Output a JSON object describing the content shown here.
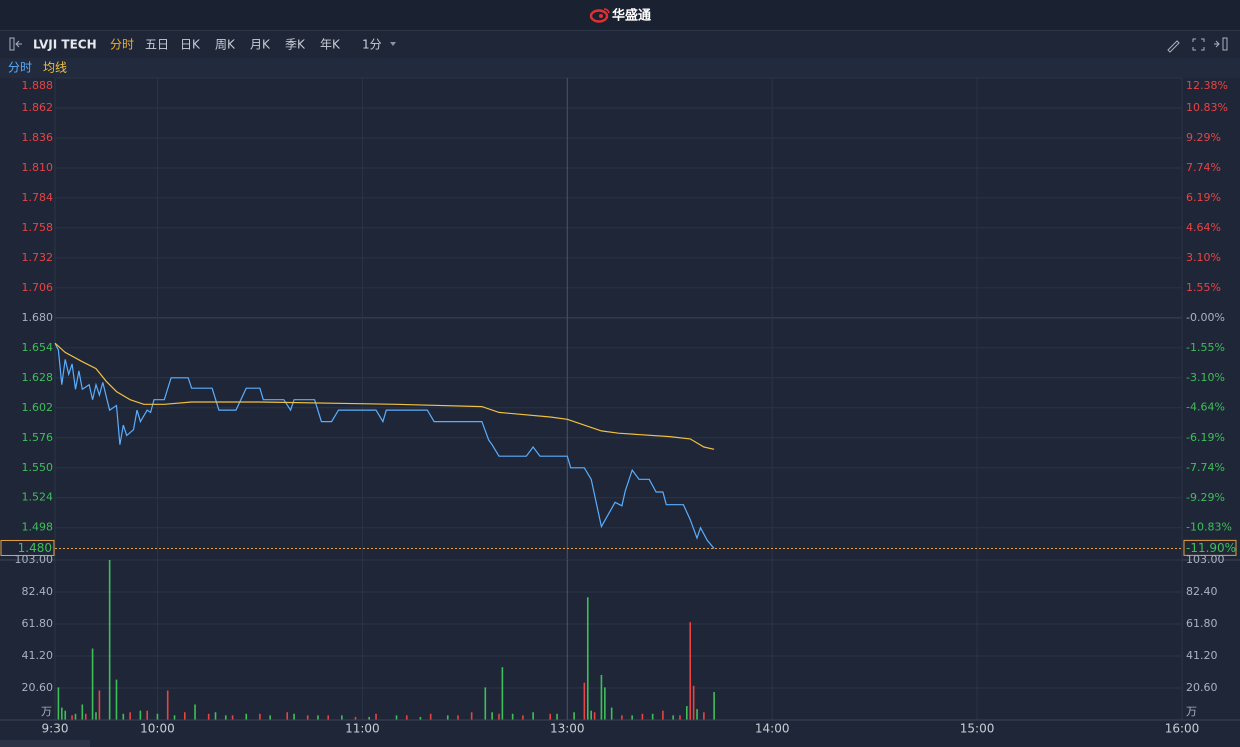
{
  "header": {
    "logo": "华盛通"
  },
  "toolbar": {
    "symbol": "LVJI TECH",
    "tabs": [
      "分时",
      "五日",
      "日K",
      "周K",
      "月K",
      "季K",
      "年K"
    ],
    "active_tab": 0,
    "interval": "1分"
  },
  "chart_data": [
    {
      "type": "line",
      "xlim": [
        0,
        330
      ],
      "ylim": [
        1.47,
        1.888
      ],
      "y2lim": [
        -12.5,
        12.38
      ],
      "yticks": [
        1.888,
        1.862,
        1.836,
        {
          "value": 1.81,
          "label": "1.810"
        },
        1.784,
        1.758,
        1.732,
        1.706,
        {
          "value": 1.68,
          "label": "1.680"
        },
        1.654,
        1.628,
        1.602,
        1.576,
        {
          "value": 1.55,
          "label": "1.550"
        },
        1.524,
        1.498
      ],
      "y2ticks": [
        {
          "value": 12.38,
          "label": "12.38%"
        },
        {
          "value": 10.83,
          "label": "10.83%"
        },
        {
          "value": 9.29,
          "label": "9.29%"
        },
        {
          "value": 7.74,
          "label": "7.74%"
        },
        {
          "value": 6.19,
          "label": "6.19%"
        },
        {
          "value": 4.64,
          "label": "4.64%"
        },
        {
          "value": 3.1,
          "label": "3.10%"
        },
        {
          "value": 1.55,
          "label": "1.55%"
        },
        {
          "value": 0,
          "label": "-0.00%"
        },
        {
          "value": -1.55,
          "label": "-1.55%"
        },
        {
          "value": -3.1,
          "label": "-3.10%"
        },
        {
          "value": -4.64,
          "label": "-4.64%"
        },
        {
          "value": -6.19,
          "label": "-6.19%"
        },
        {
          "value": -7.74,
          "label": "-7.74%"
        },
        {
          "value": -9.29,
          "label": "-9.29%"
        },
        {
          "value": -10.83,
          "label": "-10.83%"
        }
      ],
      "grid": true,
      "last_price": {
        "value": 1.48,
        "label": "1.480"
      },
      "last_change": {
        "value": -11.9,
        "label": "-11.90%"
      },
      "series": [
        {
          "name": "分时",
          "color": "#5aaeff",
          "x": [
            0,
            1,
            2,
            3,
            4,
            5,
            6,
            7,
            8,
            10,
            11,
            12,
            13,
            14,
            16,
            18,
            19,
            20,
            21,
            23,
            24,
            25,
            27,
            28,
            29,
            32,
            34,
            39,
            40,
            46,
            48,
            53,
            56,
            60,
            61,
            67,
            69,
            70,
            76,
            78,
            81,
            83,
            94,
            96,
            97,
            109,
            111,
            125,
            127,
            128,
            130,
            138,
            140,
            142,
            150,
            151,
            155,
            157,
            160,
            164,
            166,
            167,
            169,
            171,
            174,
            176,
            178,
            179,
            184,
            186,
            188,
            189,
            191,
            193
          ],
          "values": [
            1.658,
            1.652,
            1.622,
            1.644,
            1.631,
            1.64,
            1.618,
            1.634,
            1.618,
            1.622,
            1.609,
            1.622,
            1.613,
            1.624,
            1.6,
            1.604,
            1.57,
            1.587,
            1.578,
            1.583,
            1.6,
            1.59,
            1.6,
            1.598,
            1.609,
            1.609,
            1.628,
            1.628,
            1.619,
            1.619,
            1.6,
            1.6,
            1.619,
            1.619,
            1.609,
            1.609,
            1.6,
            1.609,
            1.609,
            1.59,
            1.59,
            1.6,
            1.6,
            1.59,
            1.6,
            1.6,
            1.59,
            1.59,
            1.574,
            1.57,
            1.56,
            1.56,
            1.568,
            1.56,
            1.56,
            1.55,
            1.55,
            1.54,
            1.499,
            1.52,
            1.517,
            1.53,
            1.548,
            1.54,
            1.54,
            1.529,
            1.529,
            1.518,
            1.518,
            1.505,
            1.489,
            1.498,
            1.487,
            1.48
          ]
        },
        {
          "name": "均线",
          "color": "#f0c040",
          "x": [
            0,
            3,
            8,
            12,
            15,
            18,
            22,
            26,
            32,
            40,
            60,
            100,
            125,
            130,
            145,
            150,
            160,
            165,
            180,
            186,
            190,
            193
          ],
          "values": [
            1.658,
            1.65,
            1.642,
            1.636,
            1.625,
            1.616,
            1.609,
            1.605,
            1.605,
            1.607,
            1.607,
            1.605,
            1.603,
            1.598,
            1.594,
            1.592,
            1.582,
            1.58,
            1.577,
            1.575,
            1.568,
            1.566
          ]
        }
      ]
    },
    {
      "type": "bar",
      "xlim": [
        0,
        330
      ],
      "ylim": [
        0,
        103
      ],
      "xticks": [
        {
          "value": 0,
          "label": "9:30"
        },
        {
          "value": 30,
          "label": "10:00"
        },
        {
          "value": 90,
          "label": "11:00"
        },
        {
          "value": 150,
          "label": "13:00"
        },
        {
          "value": 210,
          "label": "14:00"
        },
        {
          "value": 270,
          "label": "15:00"
        },
        {
          "value": 330,
          "label": "16:00"
        }
      ],
      "yticks": [
        {
          "value": 20.6,
          "label": "20.60"
        },
        {
          "value": 41.2,
          "label": "41.20"
        },
        {
          "value": 61.8,
          "label": "61.80"
        },
        {
          "value": 82.4,
          "label": "82.40"
        },
        {
          "value": 103,
          "label": "103.00"
        }
      ],
      "unit": "万",
      "grid": true,
      "series": [
        {
          "color": "#e84444",
          "x": [
            5,
            9,
            13,
            22,
            27,
            33,
            38,
            45,
            52,
            60,
            68,
            74,
            80,
            88,
            94,
            103,
            110,
            118,
            122,
            130,
            137,
            145,
            155,
            158,
            166,
            172,
            178,
            183,
            186,
            187,
            190
          ],
          "values": [
            3,
            4,
            19,
            5,
            6,
            19,
            5,
            4,
            3,
            4,
            5,
            3,
            3,
            2,
            4,
            3,
            4,
            3,
            5,
            4,
            3,
            4,
            24,
            5,
            3,
            4,
            6,
            3,
            63,
            22,
            5
          ]
        },
        {
          "color": "#3fbf5a",
          "x": [
            1,
            2,
            3,
            6,
            8,
            11,
            12,
            16,
            18,
            20,
            25,
            30,
            35,
            41,
            47,
            50,
            56,
            63,
            70,
            77,
            84,
            92,
            100,
            107,
            115,
            126,
            128,
            131,
            134,
            140,
            147,
            152,
            156,
            157,
            160,
            161,
            163,
            169,
            175,
            181,
            185,
            188,
            193
          ],
          "values": [
            21,
            8,
            6,
            4,
            10,
            46,
            5,
            103,
            26,
            4,
            6,
            4,
            3,
            10,
            5,
            3,
            4,
            3,
            4,
            3,
            3,
            2,
            3,
            2,
            3,
            21,
            5,
            34,
            4,
            5,
            4,
            5,
            79,
            6,
            29,
            21,
            8,
            3,
            4,
            3,
            9,
            7,
            18
          ]
        }
      ]
    }
  ]
}
